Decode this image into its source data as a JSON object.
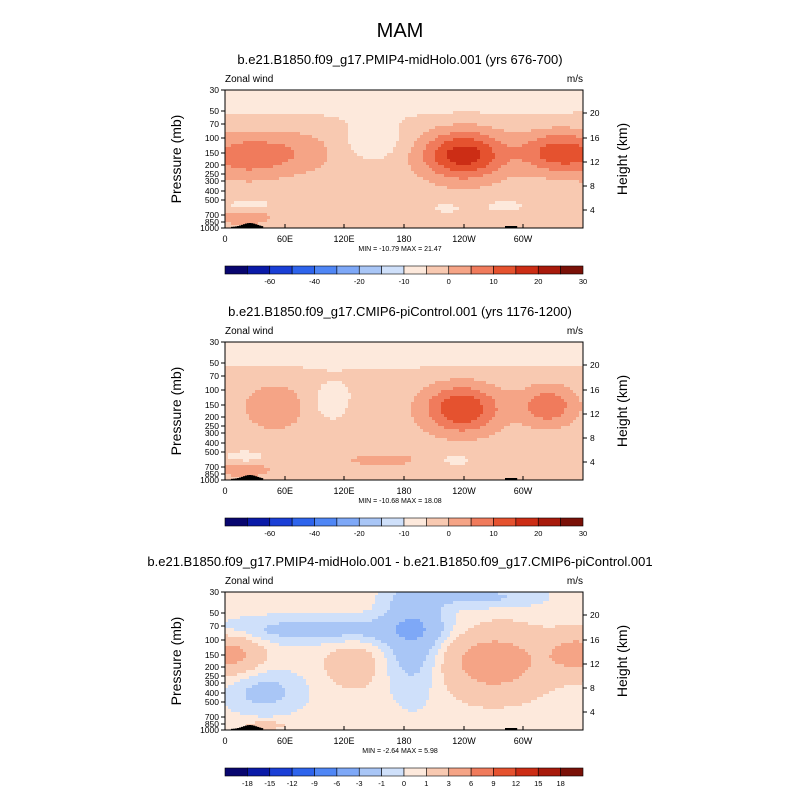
{
  "main_title": "MAM",
  "color_scales": {
    "full": {
      "levels": [
        -70,
        -60,
        -50,
        -40,
        -30,
        -20,
        -15,
        -10,
        -5,
        0,
        5,
        10,
        15,
        20,
        25,
        30,
        35
      ],
      "tick_labels": [
        "-60",
        "-40",
        "-20",
        "-10",
        "0",
        "10",
        "20",
        "30"
      ],
      "tick_after_box": [
        1,
        3,
        5,
        7,
        9,
        11,
        13,
        15
      ]
    },
    "diff": {
      "levels": [
        -21,
        -18,
        -15,
        -12,
        -9,
        -6,
        -3,
        -1,
        0,
        1,
        3,
        6,
        9,
        12,
        15,
        18,
        21
      ],
      "tick_labels": [
        "-18",
        "-15",
        "-12",
        "-9",
        "-6",
        "-3",
        "-1",
        "0",
        "1",
        "3",
        "6",
        "9",
        "12",
        "15",
        "18"
      ],
      "tick_after_box": [
        0,
        1,
        2,
        3,
        4,
        5,
        6,
        7,
        8,
        9,
        10,
        11,
        12,
        13,
        14
      ]
    }
  },
  "colors": {
    "palette": [
      "#08066f",
      "#0a1aa8",
      "#1a3fd6",
      "#2e64ec",
      "#4f86f5",
      "#7ea8f7",
      "#a9c6f6",
      "#cfe0fa",
      "#fde9dc",
      "#f8c9b1",
      "#f5a486",
      "#f07b5c",
      "#e5522f",
      "#cc2d15",
      "#a81a0c",
      "#7a1108"
    ],
    "topography": "#000000"
  },
  "chart_data": [
    {
      "type": "contour",
      "title": "b.e21.B1850.f09_g17.PMIP4-midHolo.001 (yrs 676-700)",
      "variable_label": "Zonal wind",
      "units_label": "m/s",
      "ylabel": "Pressure (mb)",
      "y2label": "Height (km)",
      "x_tick_labels": [
        "0",
        "60E",
        "120E",
        "180",
        "120W",
        "60W"
      ],
      "y_tick_labels": [
        "30",
        "50",
        "70",
        "100",
        "150",
        "200",
        "250",
        "300",
        "400",
        "500",
        "700",
        "850",
        "1000"
      ],
      "y2_tick_labels": [
        "20",
        "16",
        "12",
        "8",
        "4"
      ],
      "stats_text": "MIN = -10.79  MAX =  21.47",
      "min": -10.79,
      "max": 21.47,
      "scale": "full"
    },
    {
      "type": "contour",
      "title": "b.e21.B1850.f09_g17.CMIP6-piControl.001 (yrs 1176-1200)",
      "variable_label": "Zonal wind",
      "units_label": "m/s",
      "ylabel": "Pressure (mb)",
      "y2label": "Height (km)",
      "x_tick_labels": [
        "0",
        "60E",
        "120E",
        "180",
        "120W",
        "60W"
      ],
      "y_tick_labels": [
        "30",
        "50",
        "70",
        "100",
        "150",
        "200",
        "250",
        "300",
        "400",
        "500",
        "700",
        "850",
        "1000"
      ],
      "y2_tick_labels": [
        "20",
        "16",
        "12",
        "8",
        "4"
      ],
      "stats_text": "MIN = -10.68  MAX =  18.08",
      "min": -10.68,
      "max": 18.08,
      "scale": "full"
    },
    {
      "type": "contour",
      "title": "b.e21.B1850.f09_g17.PMIP4-midHolo.001 - b.e21.B1850.f09_g17.CMIP6-piControl.001",
      "variable_label": "Zonal wind",
      "units_label": "m/s",
      "ylabel": "Pressure (mb)",
      "y2label": "Height (km)",
      "x_tick_labels": [
        "0",
        "60E",
        "120E",
        "180",
        "120W",
        "60W"
      ],
      "y_tick_labels": [
        "30",
        "50",
        "70",
        "100",
        "150",
        "200",
        "250",
        "300",
        "400",
        "500",
        "700",
        "850",
        "1000"
      ],
      "y2_tick_labels": [
        "20",
        "16",
        "12",
        "8",
        "4"
      ],
      "stats_text": "MIN = -2.64  MAX =  5.98",
      "min": -2.64,
      "max": 5.98,
      "scale": "diff"
    }
  ]
}
